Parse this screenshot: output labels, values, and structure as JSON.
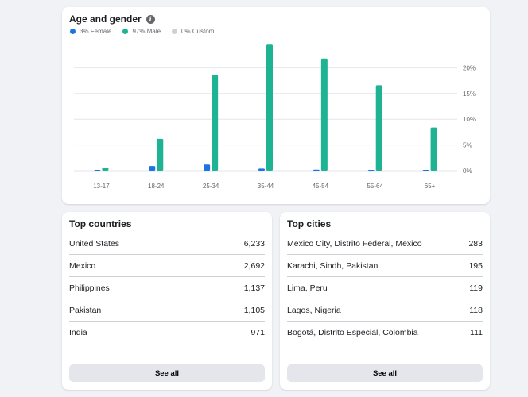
{
  "age_gender": {
    "title": "Age and gender",
    "legend": [
      {
        "label": "3% Female",
        "color": "#1b74e4"
      },
      {
        "label": "97% Male",
        "color": "#1db393"
      },
      {
        "label": "0% Custom",
        "color": "#ced0d4"
      }
    ]
  },
  "chart_data": {
    "type": "bar",
    "categories": [
      "13-17",
      "18-24",
      "25-34",
      "35-44",
      "45-54",
      "55-64",
      "65+"
    ],
    "series": [
      {
        "name": "Female",
        "values": [
          0.1,
          0.9,
          1.2,
          0.4,
          0.2,
          0.1,
          0.05
        ],
        "color": "#1b74e4"
      },
      {
        "name": "Male",
        "values": [
          0.6,
          6.2,
          18.6,
          24.5,
          21.8,
          16.6,
          8.4
        ],
        "color": "#1db393"
      }
    ],
    "yticks": [
      "20%",
      "15%",
      "10%",
      "5%",
      "0%"
    ],
    "ylim": [
      0,
      25
    ],
    "grid": true,
    "axis_side": "right"
  },
  "countries": {
    "title": "Top countries",
    "items": [
      {
        "name": "United States",
        "value": "6,233"
      },
      {
        "name": "Mexico",
        "value": "2,692"
      },
      {
        "name": "Philippines",
        "value": "1,137"
      },
      {
        "name": "Pakistan",
        "value": "1,105"
      },
      {
        "name": "India",
        "value": "971"
      }
    ],
    "see_all": "See all"
  },
  "cities": {
    "title": "Top cities",
    "items": [
      {
        "name": "Mexico City, Distrito Federal, Mexico",
        "value": "283"
      },
      {
        "name": "Karachi, Sindh, Pakistan",
        "value": "195"
      },
      {
        "name": "Lima, Peru",
        "value": "119"
      },
      {
        "name": "Lagos, Nigeria",
        "value": "118"
      },
      {
        "name": "Bogotá, Distrito Especial, Colombia",
        "value": "111"
      }
    ],
    "see_all": "See all"
  }
}
